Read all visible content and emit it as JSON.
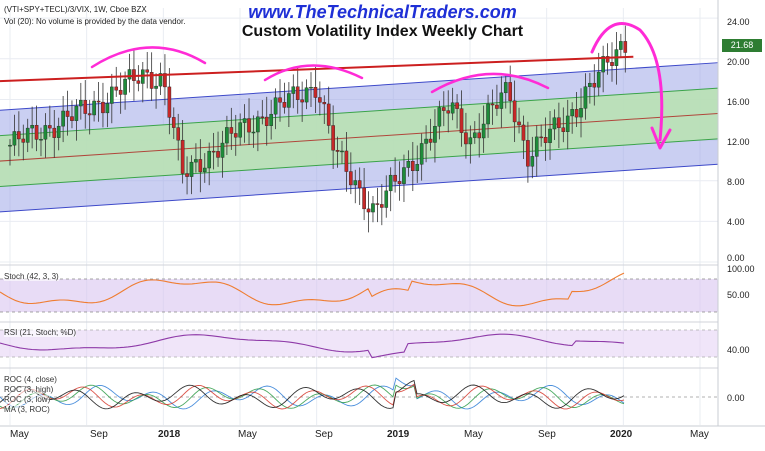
{
  "header": {
    "site": "www.TheTechnicalTraders.com",
    "title": "Custom Volatility Index Weekly Chart",
    "symbol": "(VTI+SPY+TECL)/3/VIX, 1W, Cboe BZX",
    "volume_note": "Vol (20): No volume is provided by the data vendor."
  },
  "price_axis": {
    "ticks": [
      "24.00",
      "20.00",
      "16.00",
      "12.00",
      "8.00",
      "4.00",
      "0.00"
    ],
    "last_price": "21.68"
  },
  "time_axis": {
    "labels": [
      "May",
      "Sep",
      "2018",
      "May",
      "Sep",
      "2019",
      "May",
      "Sep",
      "2020",
      "May"
    ]
  },
  "panels": {
    "stoch": {
      "label": "Stoch (42, 3, 3)",
      "ticks": [
        "100.00",
        "50.00"
      ]
    },
    "rsi": {
      "label": "RSI (21, Stoch; %D)",
      "ticks": [
        "40.00"
      ]
    },
    "roc": {
      "labels": [
        "ROC (4, close)",
        "ROC (3, high)",
        "ROC (3, low)",
        "MA (3, ROC)"
      ],
      "ticks": [
        "0.00"
      ]
    }
  },
  "colors": {
    "up": "#1e8c3a",
    "down": "#c62828",
    "resistance": "#cc1f1f",
    "annotation": "#ff2bd6",
    "outer_band": "#9fa7e8",
    "inner_band": "#b9e3b0",
    "stoch_line": "#ef7d31",
    "rsi_line": "#8e3aa8"
  },
  "chart_data": {
    "type": "candlestick",
    "title": "Custom Volatility Index Weekly Chart",
    "x_range": [
      "2017-05",
      "2020-05"
    ],
    "y_range": [
      0,
      25
    ],
    "price_close_approx": [
      {
        "date": "2017-05",
        "close": 11.5
      },
      {
        "date": "2017-09",
        "close": 15.0
      },
      {
        "date": "2017-12",
        "close": 18.5
      },
      {
        "date": "2018-01",
        "close": 18.0
      },
      {
        "date": "2018-02",
        "close": 8.5
      },
      {
        "date": "2018-05",
        "close": 13.0
      },
      {
        "date": "2018-09",
        "close": 17.5
      },
      {
        "date": "2018-10",
        "close": 10.5
      },
      {
        "date": "2018-12",
        "close": 5.0
      },
      {
        "date": "2019-02",
        "close": 10.0
      },
      {
        "date": "2019-04",
        "close": 15.5
      },
      {
        "date": "2019-05",
        "close": 12.0
      },
      {
        "date": "2019-07",
        "close": 17.0
      },
      {
        "date": "2019-08",
        "close": 10.5
      },
      {
        "date": "2019-10",
        "close": 14.0
      },
      {
        "date": "2019-12",
        "close": 19.0
      },
      {
        "date": "2020-01",
        "close": 21.68
      }
    ],
    "regression_channel": {
      "start": "2017-05",
      "end": "2020-01",
      "upper_start": 15.0,
      "upper_end": 19.0,
      "mid_upper_start": 12.5,
      "mid_upper_end": 16.5,
      "center_start": 10.0,
      "center_end": 14.0,
      "mid_lower_start": 7.5,
      "mid_lower_end": 11.5,
      "lower_start": 5.0,
      "lower_end": 9.0
    },
    "resistance_line": {
      "start_date": "2017-05",
      "start_value": 17.8,
      "end_date": "2020-01",
      "end_value": 20.2
    },
    "indicators": [
      "Stoch (42, 3, 3)",
      "RSI (21, Stoch; %D)",
      "ROC (4, close)",
      "ROC (3, high)",
      "ROC (3, low)",
      "MA (3, ROC)"
    ]
  }
}
